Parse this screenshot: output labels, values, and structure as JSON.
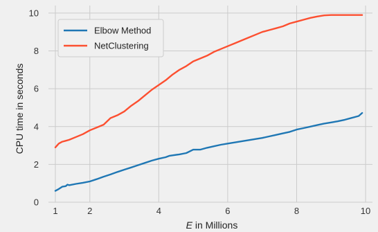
{
  "chart_data": {
    "type": "line",
    "title": "",
    "xlabel_var": "E",
    "xlabel_rest": " in Millions",
    "ylabel": "CPU time in seconds",
    "xlim": [
      0.8,
      10.2
    ],
    "ylim": [
      0,
      10.4
    ],
    "xticks": [
      1,
      2,
      4,
      6,
      8,
      10
    ],
    "yticks": [
      0,
      2,
      4,
      6,
      8,
      10
    ],
    "grid": true,
    "legend_position": "top-left",
    "series": [
      {
        "name": "Elbow Method",
        "color": "#1f77b4",
        "x": [
          1.0,
          1.1,
          1.2,
          1.3,
          1.35,
          1.4,
          1.6,
          1.8,
          2.0,
          2.2,
          2.4,
          2.6,
          2.8,
          3.0,
          3.2,
          3.4,
          3.6,
          3.8,
          4.0,
          4.2,
          4.3,
          4.4,
          4.6,
          4.8,
          5.0,
          5.2,
          5.4,
          5.6,
          5.8,
          6.0,
          6.2,
          6.4,
          6.6,
          6.8,
          7.0,
          7.2,
          7.4,
          7.6,
          7.8,
          8.0,
          8.2,
          8.4,
          8.6,
          8.8,
          9.0,
          9.2,
          9.4,
          9.6,
          9.8,
          9.9
        ],
        "values": [
          0.6,
          0.7,
          0.82,
          0.85,
          0.93,
          0.9,
          0.97,
          1.03,
          1.1,
          1.22,
          1.35,
          1.47,
          1.6,
          1.72,
          1.84,
          1.96,
          2.08,
          2.2,
          2.3,
          2.38,
          2.45,
          2.48,
          2.53,
          2.6,
          2.78,
          2.78,
          2.88,
          2.96,
          3.04,
          3.1,
          3.16,
          3.22,
          3.28,
          3.34,
          3.4,
          3.48,
          3.56,
          3.64,
          3.72,
          3.84,
          3.92,
          4.0,
          4.08,
          4.16,
          4.22,
          4.28,
          4.36,
          4.46,
          4.56,
          4.72
        ]
      },
      {
        "name": "NetClustering",
        "color": "#fc4f30",
        "x": [
          1.0,
          1.1,
          1.2,
          1.3,
          1.4,
          1.6,
          1.8,
          2.0,
          2.2,
          2.4,
          2.6,
          2.8,
          3.0,
          3.2,
          3.4,
          3.6,
          3.8,
          4.0,
          4.2,
          4.4,
          4.6,
          4.8,
          5.0,
          5.2,
          5.4,
          5.6,
          5.8,
          6.0,
          6.2,
          6.4,
          6.6,
          6.8,
          7.0,
          7.2,
          7.4,
          7.6,
          7.8,
          8.0,
          8.2,
          8.4,
          8.6,
          8.8,
          9.0,
          9.2,
          9.4,
          9.6,
          9.8,
          9.9
        ],
        "values": [
          2.9,
          3.1,
          3.2,
          3.25,
          3.3,
          3.45,
          3.6,
          3.8,
          3.95,
          4.1,
          4.45,
          4.6,
          4.8,
          5.1,
          5.35,
          5.65,
          5.95,
          6.2,
          6.45,
          6.75,
          7.0,
          7.2,
          7.45,
          7.6,
          7.75,
          7.95,
          8.1,
          8.25,
          8.4,
          8.55,
          8.7,
          8.85,
          9.0,
          9.1,
          9.2,
          9.3,
          9.45,
          9.55,
          9.65,
          9.75,
          9.82,
          9.88,
          9.9,
          9.9,
          9.9,
          9.9,
          9.9,
          9.9
        ]
      }
    ]
  }
}
